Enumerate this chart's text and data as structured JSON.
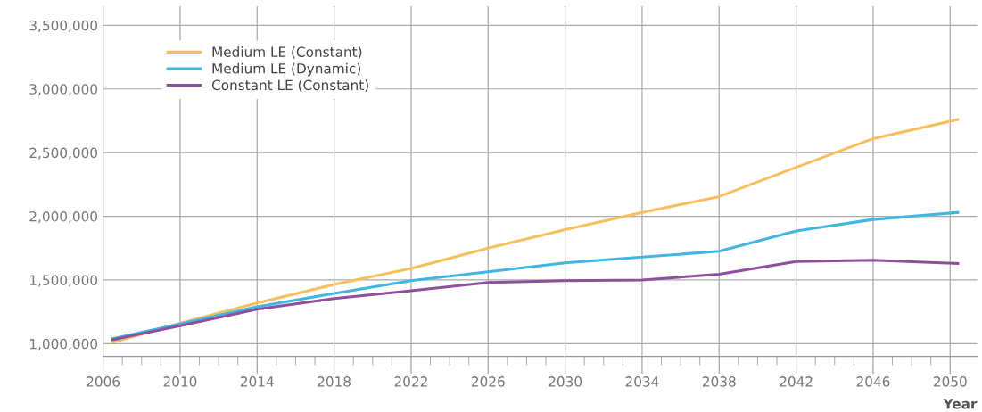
{
  "chart_data": {
    "type": "line",
    "xlabel": "Year",
    "xlim": [
      2006,
      2051.4
    ],
    "ylim": [
      900000,
      3650000
    ],
    "xticks": [
      2006,
      {
        "value": 2007,
        "label": null
      },
      {
        "value": 2008,
        "label": null
      },
      {
        "value": 2009,
        "label": null
      },
      2010,
      {
        "value": 2011,
        "label": null
      },
      {
        "value": 2012,
        "label": null
      },
      {
        "value": 2013,
        "label": null
      },
      2014,
      {
        "value": 2015,
        "label": null
      },
      {
        "value": 2016,
        "label": null
      },
      {
        "value": 2017,
        "label": null
      },
      2018,
      {
        "value": 2019,
        "label": null
      },
      {
        "value": 2020,
        "label": null
      },
      {
        "value": 2021,
        "label": null
      },
      2022,
      {
        "value": 2023,
        "label": null
      },
      {
        "value": 2024,
        "label": null
      },
      {
        "value": 2025,
        "label": null
      },
      2026,
      {
        "value": 2027,
        "label": null
      },
      {
        "value": 2028,
        "label": null
      },
      {
        "value": 2029,
        "label": null
      },
      2030,
      {
        "value": 2031,
        "label": null
      },
      {
        "value": 2032,
        "label": null
      },
      {
        "value": 2033,
        "label": null
      },
      2034,
      {
        "value": 2035,
        "label": null
      },
      {
        "value": 2036,
        "label": null
      },
      {
        "value": 2037,
        "label": null
      },
      2038,
      {
        "value": 2039,
        "label": null
      },
      {
        "value": 2040,
        "label": null
      },
      {
        "value": 2041,
        "label": null
      },
      2042,
      {
        "value": 2043,
        "label": null
      },
      {
        "value": 2044,
        "label": null
      },
      {
        "value": 2045,
        "label": null
      },
      2046,
      {
        "value": 2047,
        "label": null
      },
      {
        "value": 2048,
        "label": null
      },
      {
        "value": 2049,
        "label": null
      },
      2050
    ],
    "yticks": [
      {
        "value": 1000000,
        "label": "1,000,000"
      },
      {
        "value": 1500000,
        "label": "1,500,000"
      },
      {
        "value": 2000000,
        "label": "2,000,000"
      },
      {
        "value": 2500000,
        "label": "2,500,000"
      },
      {
        "value": 3000000,
        "label": "3,000,000"
      },
      {
        "value": 3500000,
        "label": "3,500,000"
      }
    ],
    "grid": true,
    "legend": "top left",
    "marker": "none",
    "line_style": "solid",
    "x": [
      2006.5,
      2010,
      2014,
      2018,
      2022,
      2026,
      2030,
      2034,
      2038,
      2042,
      2046,
      2050.4
    ],
    "series": [
      {
        "name": "Medium LE (Constant)",
        "color": "#f9bf5f",
        "values": [
          1010000,
          1160000,
          1320000,
          1465000,
          1590000,
          1750000,
          1895000,
          2030000,
          2155000,
          2385000,
          2610000,
          2760000
        ]
      },
      {
        "name": "Medium LE (Dynamic)",
        "color": "#41b6e0",
        "values": [
          1040000,
          1155000,
          1290000,
          1395000,
          1495000,
          1565000,
          1635000,
          1680000,
          1725000,
          1885000,
          1975000,
          2030000
        ]
      },
      {
        "name": "Constant LE (Constant)",
        "color": "#8e4f9e",
        "values": [
          1030000,
          1140000,
          1270000,
          1355000,
          1415000,
          1480000,
          1495000,
          1500000,
          1545000,
          1645000,
          1655000,
          1630000
        ]
      }
    ]
  }
}
